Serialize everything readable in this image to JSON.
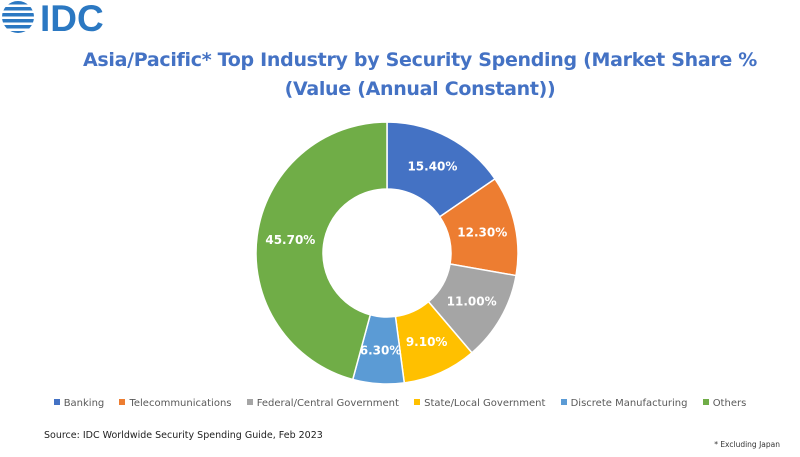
{
  "logo": {
    "text": "IDC",
    "color": "#2b78c2"
  },
  "header": {
    "title_line1": "Asia/Pacific* Top Industry by Security Spending  (Market Share %",
    "title_line2": "(Value (Annual Constant))"
  },
  "chart_data": {
    "type": "pie",
    "variant": "donut",
    "title": "Asia/Pacific* Top Industry by Security Spending (Market Share % (Value (Annual Constant))",
    "categories": [
      "Banking",
      "Telecommunications",
      "Federal/Central Government",
      "State/Local Government",
      "Discrete Manufacturing",
      "Others"
    ],
    "values": [
      15.4,
      12.3,
      11.0,
      9.1,
      6.3,
      45.7
    ],
    "labels": [
      "15.40%",
      "12.30%",
      "11.00%",
      "9.10%",
      "6.30%",
      "45.70%"
    ],
    "colors": [
      "#4472c4",
      "#ed7d31",
      "#a5a5a5",
      "#ffc000",
      "#5b9bd5",
      "#70ad47"
    ],
    "unit": "%",
    "start_angle": "12 o'clock",
    "direction": "clockwise",
    "legend_position": "bottom"
  },
  "legend": {
    "items": [
      {
        "label": "Banking",
        "color": "#4472c4"
      },
      {
        "label": "Telecommunications",
        "color": "#ed7d31"
      },
      {
        "label": "Federal/Central Government",
        "color": "#a5a5a5"
      },
      {
        "label": "State/Local Government",
        "color": "#ffc000"
      },
      {
        "label": "Discrete Manufacturing",
        "color": "#5b9bd5"
      },
      {
        "label": "Others",
        "color": "#70ad47"
      }
    ]
  },
  "footer": {
    "source": "Source: IDC Worldwide Security Spending Guide, Feb 2023",
    "footnote": "* Excluding Japan"
  }
}
